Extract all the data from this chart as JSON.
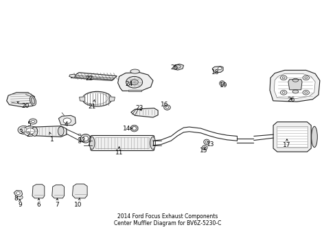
{
  "bg_color": "#ffffff",
  "line_color": "#222222",
  "fig_width": 4.89,
  "fig_height": 3.6,
  "dpi": 100,
  "title_line1": "2014 Ford Focus Exhaust Components",
  "title_line2": "Center Muffler Diagram for BV6Z-5230-C",
  "labels": {
    "1": [
      0.148,
      0.415,
      0.163,
      0.43
    ],
    "2": [
      0.082,
      0.433,
      0.093,
      0.447
    ],
    "3": [
      0.057,
      0.447,
      0.065,
      0.455
    ],
    "4": [
      0.192,
      0.478,
      0.2,
      0.492
    ],
    "5": [
      0.083,
      0.478,
      0.091,
      0.484
    ],
    "6": [
      0.108,
      0.123,
      0.112,
      0.138
    ],
    "7": [
      0.162,
      0.123,
      0.167,
      0.138
    ],
    "8": [
      0.043,
      0.153,
      0.05,
      0.16
    ],
    "9": [
      0.067,
      0.118,
      0.068,
      0.13
    ],
    "10": [
      0.228,
      0.118,
      0.23,
      0.135
    ],
    "11": [
      0.345,
      0.35,
      0.352,
      0.375
    ],
    "12": [
      0.238,
      0.415,
      0.245,
      0.43
    ],
    "13": [
      0.628,
      0.398,
      0.618,
      0.388
    ],
    "14": [
      0.38,
      0.452,
      0.395,
      0.455
    ],
    "15": [
      0.61,
      0.368,
      0.615,
      0.378
    ],
    "16": [
      0.492,
      0.548,
      0.497,
      0.535
    ],
    "17": [
      0.863,
      0.385,
      0.873,
      0.4
    ],
    "18": [
      0.65,
      0.703,
      0.658,
      0.712
    ],
    "19": [
      0.67,
      0.658,
      0.665,
      0.648
    ],
    "20": [
      0.082,
      0.552,
      0.085,
      0.558
    ],
    "21": [
      0.278,
      0.548,
      0.285,
      0.555
    ],
    "22": [
      0.262,
      0.678,
      0.268,
      0.665
    ],
    "23": [
      0.418,
      0.538,
      0.425,
      0.528
    ],
    "24": [
      0.385,
      0.652,
      0.392,
      0.64
    ],
    "25": [
      0.53,
      0.722,
      0.528,
      0.71
    ],
    "26": [
      0.878,
      0.58,
      0.88,
      0.6
    ]
  }
}
